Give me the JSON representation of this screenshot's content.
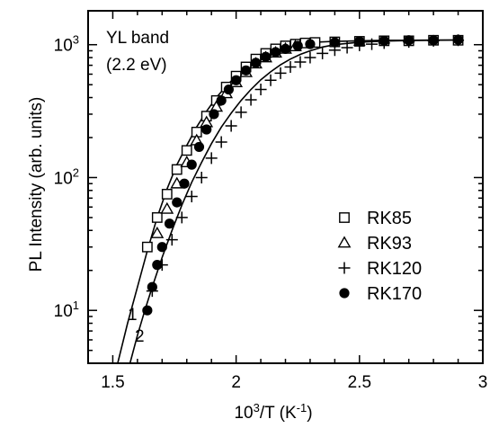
{
  "chart_data": {
    "type": "scatter",
    "xlabel_main": "10",
    "xlabel_sup": "3",
    "xlabel_mid": "/T (K",
    "xlabel_sup2": "-1",
    "xlabel_end": ")",
    "ylabel": "PL Intensity (arb. units)",
    "xlim": [
      1.4,
      3.0
    ],
    "ylim": [
      4,
      1800
    ],
    "yscale": "log",
    "xticks": [
      1.5,
      2.0,
      2.5,
      3.0
    ],
    "xtick_labels": [
      "1.5",
      "2",
      "2.5",
      "3"
    ],
    "yticks": [
      10,
      100,
      1000
    ],
    "ytick_base": "10",
    "ytick_exps": [
      "1",
      "2",
      "3"
    ],
    "annotation_line1": "YL band",
    "annotation_line2": "(2.2 eV)",
    "fit_labels": [
      "1",
      "2"
    ],
    "legend_position": "right",
    "series": [
      {
        "name": "RK85",
        "marker": "open-square",
        "x": [
          1.64,
          1.68,
          1.72,
          1.76,
          1.8,
          1.84,
          1.88,
          1.92,
          1.96,
          2.0,
          2.04,
          2.08,
          2.12,
          2.16,
          2.2,
          2.24,
          2.28,
          2.32,
          2.4,
          2.5,
          2.6,
          2.7,
          2.8,
          2.9
        ],
        "y": [
          30,
          50,
          75,
          115,
          160,
          220,
          290,
          380,
          480,
          580,
          680,
          780,
          860,
          930,
          980,
          1010,
          1030,
          1040,
          1050,
          1060,
          1070,
          1070,
          1080,
          1080
        ]
      },
      {
        "name": "RK93",
        "marker": "open-triangle",
        "x": [
          1.68,
          1.72,
          1.76,
          1.8,
          1.84,
          1.88,
          1.92,
          1.96,
          2.0,
          2.04,
          2.08,
          2.12,
          2.16,
          2.2,
          2.24
        ],
        "y": [
          38,
          58,
          90,
          130,
          190,
          260,
          340,
          430,
          520,
          620,
          720,
          800,
          870,
          930,
          970
        ]
      },
      {
        "name": "RK120",
        "marker": "plus",
        "x": [
          1.66,
          1.7,
          1.74,
          1.78,
          1.82,
          1.86,
          1.9,
          1.94,
          1.98,
          2.02,
          2.06,
          2.1,
          2.14,
          2.18,
          2.22,
          2.26,
          2.3,
          2.35,
          2.4,
          2.45,
          2.5,
          2.55,
          2.6,
          2.7,
          2.8,
          2.9
        ],
        "y": [
          14,
          22,
          34,
          50,
          72,
          100,
          140,
          185,
          245,
          310,
          385,
          460,
          540,
          610,
          680,
          740,
          800,
          860,
          910,
          950,
          990,
          1010,
          1030,
          1050,
          1070,
          1080
        ]
      },
      {
        "name": "RK170",
        "marker": "filled-circle",
        "x": [
          1.64,
          1.66,
          1.68,
          1.7,
          1.73,
          1.76,
          1.79,
          1.82,
          1.85,
          1.88,
          1.91,
          1.94,
          1.97,
          2.0,
          2.04,
          2.08,
          2.12,
          2.16,
          2.2,
          2.25,
          2.3,
          2.4,
          2.5,
          2.6,
          2.7,
          2.8,
          2.9
        ],
        "y": [
          10,
          15,
          22,
          30,
          45,
          65,
          90,
          125,
          170,
          230,
          300,
          380,
          460,
          540,
          640,
          730,
          810,
          880,
          930,
          980,
          1010,
          1040,
          1060,
          1070,
          1080,
          1080,
          1090
        ]
      }
    ],
    "fits": [
      {
        "label": "1",
        "x": [
          1.52,
          1.56,
          1.6,
          1.64,
          1.68,
          1.72,
          1.76,
          1.8,
          1.84,
          1.88,
          1.92,
          1.96,
          2.0,
          2.04,
          2.08,
          2.12,
          2.16,
          2.2,
          2.24,
          2.28,
          2.32,
          2.4,
          2.5,
          2.6,
          2.7,
          2.8,
          2.9
        ],
        "y": [
          4,
          8,
          15,
          28,
          50,
          82,
          125,
          175,
          240,
          315,
          400,
          490,
          580,
          670,
          760,
          840,
          910,
          960,
          1000,
          1030,
          1045,
          1060,
          1070,
          1080,
          1080,
          1085,
          1085
        ]
      },
      {
        "label": "2",
        "x": [
          1.57,
          1.6,
          1.63,
          1.66,
          1.7,
          1.74,
          1.78,
          1.82,
          1.86,
          1.9,
          1.94,
          1.98,
          2.02,
          2.06,
          2.1,
          2.14,
          2.18,
          2.22,
          2.26,
          2.3,
          2.35,
          2.4,
          2.5,
          2.6,
          2.7,
          2.8,
          2.9
        ],
        "y": [
          4,
          6.5,
          10,
          15,
          25,
          40,
          62,
          92,
          130,
          180,
          240,
          305,
          380,
          460,
          545,
          625,
          705,
          780,
          845,
          900,
          960,
          1000,
          1045,
          1065,
          1075,
          1080,
          1085
        ]
      }
    ]
  }
}
